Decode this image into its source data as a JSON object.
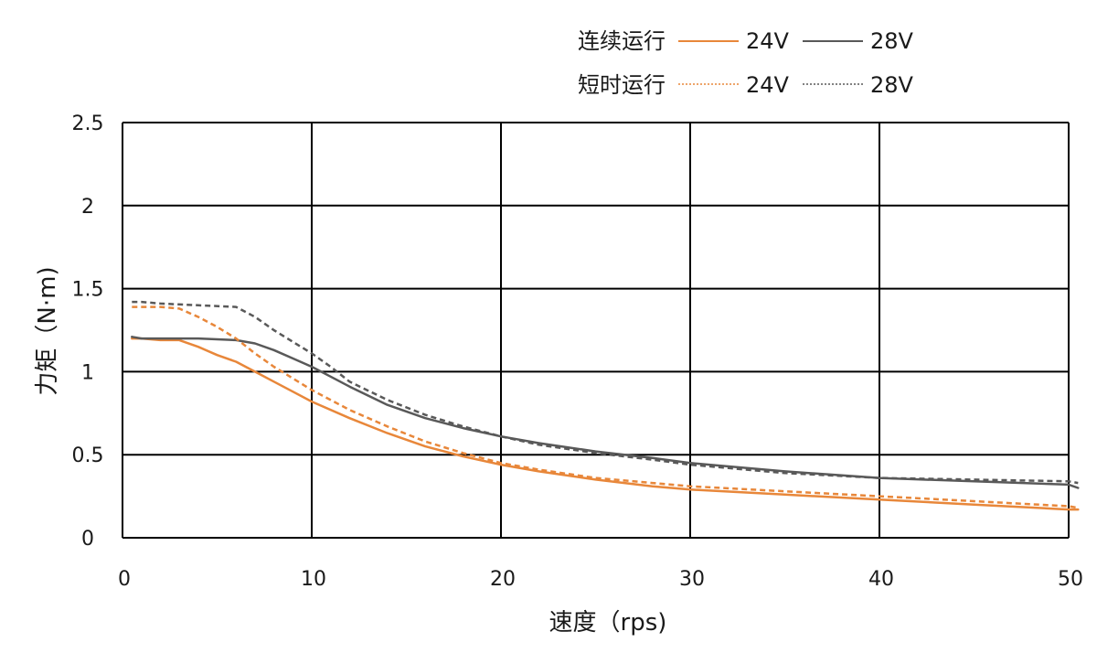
{
  "chart_data": {
    "type": "line",
    "xlabel": "速度（rps)",
    "ylabel": "力矩（N·m)",
    "xlim": [
      0,
      50
    ],
    "ylim": [
      0,
      2.5
    ],
    "x_ticks": [
      "0",
      "10",
      "20",
      "30",
      "40",
      "50"
    ],
    "y_ticks": [
      "0",
      "0.5",
      "1",
      "1.5",
      "2",
      "2.5"
    ],
    "grid": true,
    "legend_position": "top-right",
    "legend": {
      "groups": [
        {
          "label": "连续运行",
          "entries": [
            {
              "label": "24V",
              "series": 0
            },
            {
              "label": "28V",
              "series": 1
            }
          ]
        },
        {
          "label": "短时运行",
          "entries": [
            {
              "label": "24V",
              "series": 2
            },
            {
              "label": "28V",
              "series": 3
            }
          ]
        }
      ]
    },
    "series": [
      {
        "color": "#e8873a",
        "dash": "solid",
        "points": [
          [
            0.5,
            1.2
          ],
          [
            1,
            1.2
          ],
          [
            2,
            1.19
          ],
          [
            3,
            1.19
          ],
          [
            4,
            1.15
          ],
          [
            5,
            1.1
          ],
          [
            6,
            1.06
          ],
          [
            7,
            1.0
          ],
          [
            8,
            0.94
          ],
          [
            9,
            0.88
          ],
          [
            10,
            0.82
          ],
          [
            12,
            0.72
          ],
          [
            14,
            0.63
          ],
          [
            16,
            0.55
          ],
          [
            18,
            0.49
          ],
          [
            20,
            0.44
          ],
          [
            22,
            0.4
          ],
          [
            25,
            0.35
          ],
          [
            28,
            0.31
          ],
          [
            30,
            0.29
          ],
          [
            35,
            0.26
          ],
          [
            40,
            0.23
          ],
          [
            45,
            0.2
          ],
          [
            50,
            0.17
          ],
          [
            50.5,
            0.17
          ]
        ]
      },
      {
        "color": "#595959",
        "dash": "solid",
        "points": [
          [
            0.5,
            1.21
          ],
          [
            1,
            1.2
          ],
          [
            2,
            1.2
          ],
          [
            4,
            1.2
          ],
          [
            6,
            1.19
          ],
          [
            7,
            1.17
          ],
          [
            8,
            1.13
          ],
          [
            9,
            1.08
          ],
          [
            10,
            1.03
          ],
          [
            11,
            0.97
          ],
          [
            12,
            0.91
          ],
          [
            14,
            0.8
          ],
          [
            16,
            0.72
          ],
          [
            18,
            0.66
          ],
          [
            20,
            0.61
          ],
          [
            22,
            0.57
          ],
          [
            25,
            0.52
          ],
          [
            28,
            0.48
          ],
          [
            30,
            0.45
          ],
          [
            35,
            0.4
          ],
          [
            40,
            0.36
          ],
          [
            45,
            0.34
          ],
          [
            50,
            0.32
          ],
          [
            50.5,
            0.3
          ]
        ]
      },
      {
        "color": "#e8873a",
        "dash": "dashed",
        "points": [
          [
            0.5,
            1.39
          ],
          [
            1,
            1.39
          ],
          [
            2,
            1.39
          ],
          [
            3,
            1.38
          ],
          [
            4,
            1.33
          ],
          [
            5,
            1.27
          ],
          [
            6,
            1.2
          ],
          [
            7,
            1.11
          ],
          [
            8,
            1.03
          ],
          [
            9,
            0.96
          ],
          [
            10,
            0.89
          ],
          [
            12,
            0.77
          ],
          [
            14,
            0.67
          ],
          [
            16,
            0.58
          ],
          [
            18,
            0.51
          ],
          [
            20,
            0.45
          ],
          [
            22,
            0.41
          ],
          [
            25,
            0.36
          ],
          [
            28,
            0.33
          ],
          [
            30,
            0.31
          ],
          [
            35,
            0.28
          ],
          [
            40,
            0.25
          ],
          [
            45,
            0.22
          ],
          [
            50,
            0.19
          ],
          [
            50.5,
            0.18
          ]
        ]
      },
      {
        "color": "#595959",
        "dash": "dashed",
        "points": [
          [
            0.5,
            1.42
          ],
          [
            1,
            1.42
          ],
          [
            2,
            1.41
          ],
          [
            4,
            1.4
          ],
          [
            6,
            1.39
          ],
          [
            7,
            1.33
          ],
          [
            8,
            1.25
          ],
          [
            9,
            1.18
          ],
          [
            10,
            1.11
          ],
          [
            11,
            1.03
          ],
          [
            12,
            0.94
          ],
          [
            14,
            0.83
          ],
          [
            16,
            0.74
          ],
          [
            18,
            0.67
          ],
          [
            20,
            0.61
          ],
          [
            22,
            0.56
          ],
          [
            25,
            0.51
          ],
          [
            28,
            0.47
          ],
          [
            30,
            0.44
          ],
          [
            35,
            0.39
          ],
          [
            40,
            0.36
          ],
          [
            45,
            0.35
          ],
          [
            50,
            0.34
          ],
          [
            50.5,
            0.33
          ]
        ]
      }
    ]
  }
}
